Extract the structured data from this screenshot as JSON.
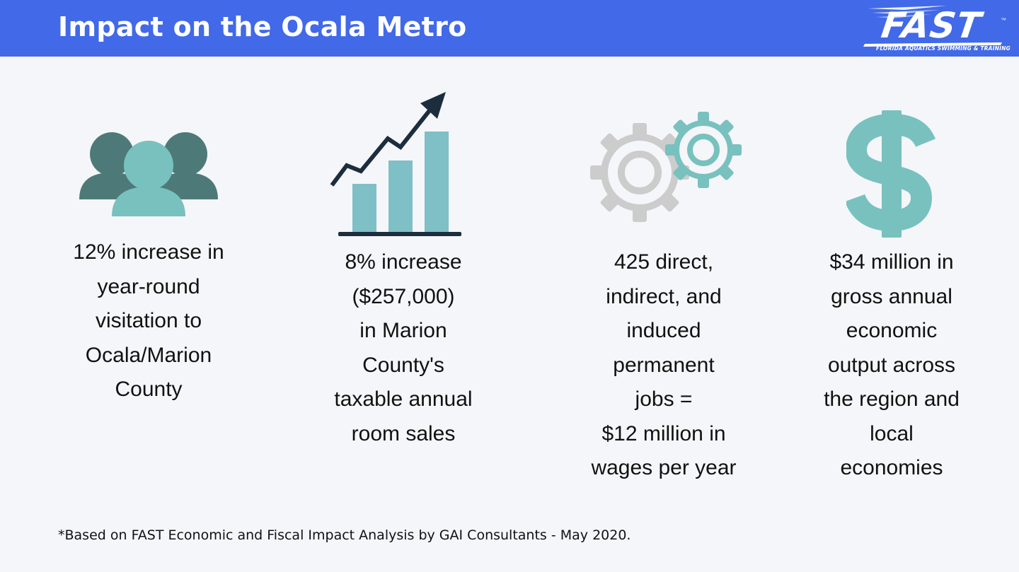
{
  "header": {
    "title": "Impact on the Ocala Metro",
    "logo": {
      "word": "FAST",
      "tagline": "FLORIDA AQUATICS SWIMMING & TRAINING",
      "tm": "™"
    }
  },
  "stats": [
    {
      "icon": "people-icon",
      "text": "12% increase in\nyear-round\nvisitation to\nOcala/Marion\nCounty"
    },
    {
      "icon": "growth-chart-icon",
      "text": "8% increase\n($257,000)\nin Marion\nCounty's\ntaxable annual\nroom sales"
    },
    {
      "icon": "gears-icon",
      "text": "425 direct,\nindirect, and\ninduced\npermanent\njobs  =\n$12 million in\nwages per year"
    },
    {
      "icon": "dollar-sign-icon",
      "text": "$34 million in\ngross annual\neconomic\noutput across\nthe region and\nlocal\neconomies"
    }
  ],
  "footnote": "*Based on FAST Economic and Fiscal Impact Analysis by GAI Consultants - May 2020.",
  "colors": {
    "header_bg": "#4169e8",
    "dark_teal": "#4d7a78",
    "light_teal": "#78c1bf",
    "bar_teal": "#7fbfc6",
    "navy": "#1c2d3e",
    "gray": "#cccccc"
  }
}
